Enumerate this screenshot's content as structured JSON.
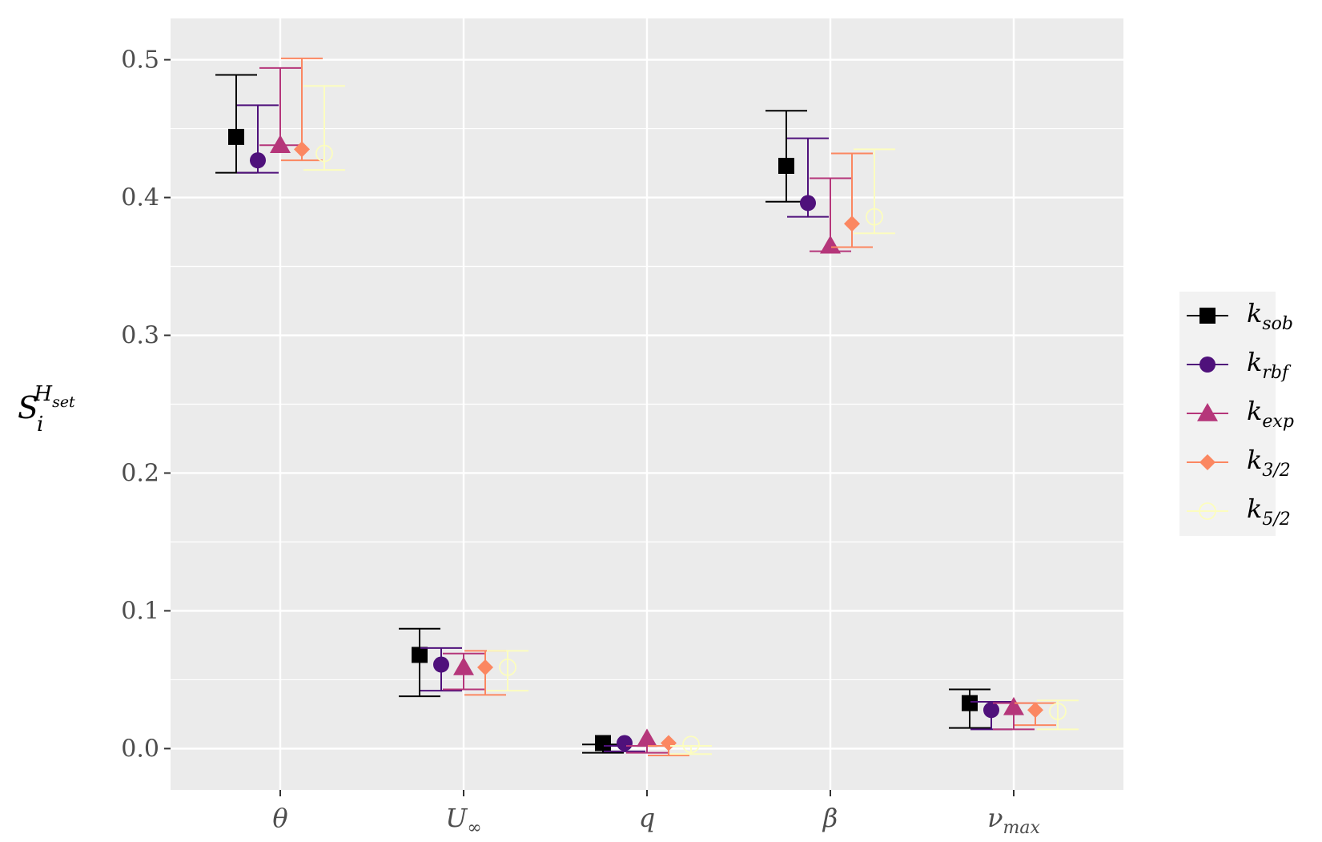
{
  "chart_data": {
    "type": "scatter",
    "title": "",
    "xlabel": "",
    "ylabel": {
      "base": "S",
      "sub": "i",
      "sup": "H",
      "sup_sub": "set"
    },
    "ylim": [
      -0.03,
      0.53
    ],
    "yticks": [
      {
        "value": 0.0,
        "label": "0.0"
      },
      {
        "value": 0.1,
        "label": "0.1"
      },
      {
        "value": 0.2,
        "label": "0.2"
      },
      {
        "value": 0.3,
        "label": "0.3"
      },
      {
        "value": 0.4,
        "label": "0.4"
      },
      {
        "value": 0.5,
        "label": "0.5"
      }
    ],
    "categories": [
      {
        "base": "θ",
        "sub": ""
      },
      {
        "base": "U",
        "sub": "∞"
      },
      {
        "base": "q",
        "sub": ""
      },
      {
        "base": "β",
        "sub": ""
      },
      {
        "base": "ν",
        "sub": "max"
      }
    ],
    "legend_position": "right",
    "series": [
      {
        "name": "k_sob",
        "base": "k",
        "sub": "sob",
        "color": "#000000",
        "marker": "square",
        "values": [
          0.444,
          0.068,
          0.004,
          0.423,
          0.033
        ],
        "lower": [
          0.418,
          0.038,
          -0.003,
          0.397,
          0.015
        ],
        "upper": [
          0.489,
          0.087,
          0.003,
          0.463,
          0.043
        ]
      },
      {
        "name": "k_rbf",
        "base": "k",
        "sub": "rbf",
        "color": "#4f117b",
        "marker": "circle",
        "values": [
          0.427,
          0.061,
          0.004,
          0.396,
          0.028
        ],
        "lower": [
          0.418,
          0.042,
          -0.002,
          0.386,
          0.014
        ],
        "upper": [
          0.467,
          0.073,
          0.002,
          0.443,
          0.034
        ]
      },
      {
        "name": "k_exp",
        "base": "k",
        "sub": "exp",
        "color": "#b5367a",
        "marker": "triangle",
        "values": [
          0.438,
          0.059,
          0.007,
          0.365,
          0.03
        ],
        "lower": [
          0.438,
          0.043,
          -0.003,
          0.361,
          0.014
        ],
        "upper": [
          0.494,
          0.069,
          0.002,
          0.414,
          0.033
        ]
      },
      {
        "name": "k_3/2",
        "base": "k",
        "sub": "3/2",
        "color": "#fb8761",
        "marker": "diamond",
        "values": [
          0.435,
          0.059,
          0.004,
          0.381,
          0.028
        ],
        "lower": [
          0.427,
          0.039,
          -0.005,
          0.364,
          0.017
        ],
        "upper": [
          0.501,
          0.071,
          0.002,
          0.432,
          0.033
        ]
      },
      {
        "name": "k_5/2",
        "base": "k",
        "sub": "5/2",
        "color": "#fcfdbf",
        "marker": "open-circle",
        "values": [
          0.432,
          0.059,
          0.003,
          0.386,
          0.027
        ],
        "lower": [
          0.42,
          0.042,
          -0.004,
          0.374,
          0.014
        ],
        "upper": [
          0.481,
          0.071,
          0.002,
          0.435,
          0.035
        ]
      }
    ]
  }
}
